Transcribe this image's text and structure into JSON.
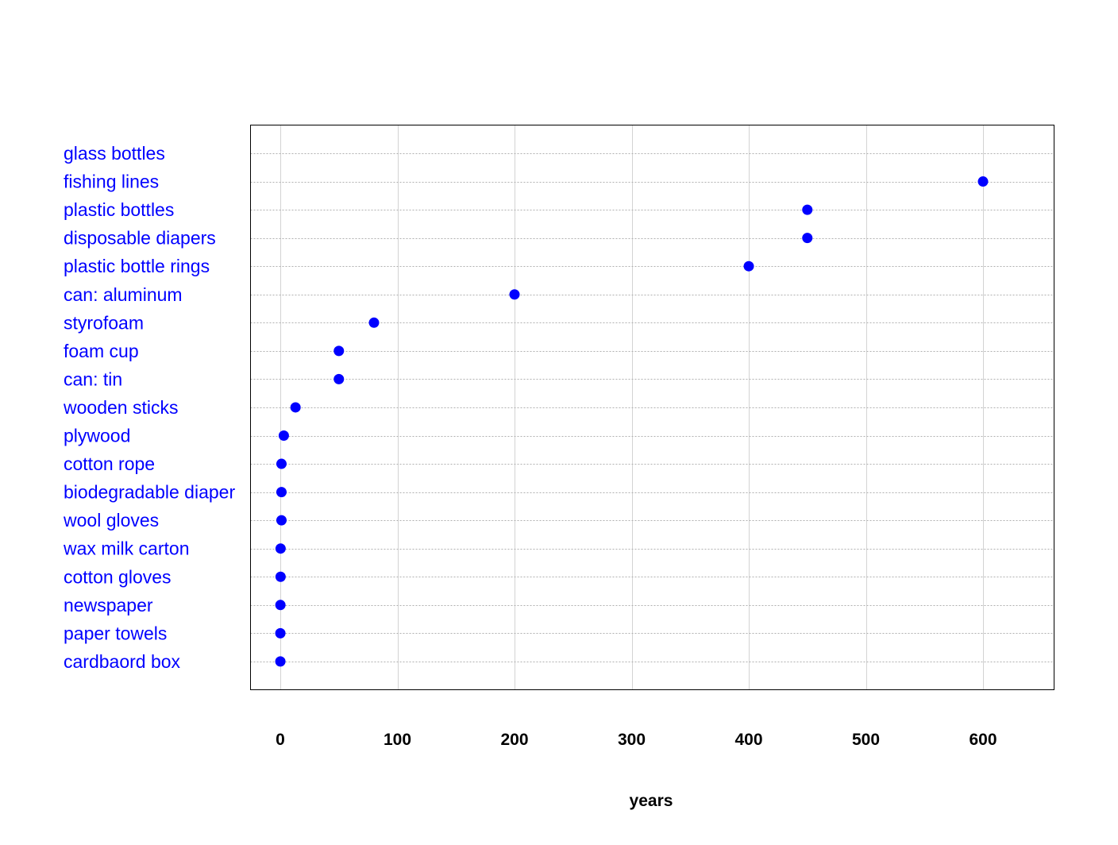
{
  "chart_data": {
    "type": "scatter",
    "title": "",
    "xlabel": "years",
    "ylabel": "",
    "xlim": [
      -25,
      660
    ],
    "xticks": [
      0,
      100,
      200,
      300,
      400,
      500,
      600
    ],
    "xtick_labels": [
      "0",
      "100",
      "200",
      "300",
      "400",
      "500",
      "600"
    ],
    "x_grid": true,
    "y_grid": "dotted",
    "categories": [
      "glass bottles",
      "fishing lines",
      "plastic bottles",
      "disposable diapers",
      "plastic bottle rings",
      "can: aluminum",
      "styrofoam",
      "foam cup",
      "can: tin",
      "wooden sticks",
      "plywood",
      "cotton rope",
      "biodegradable diaper",
      "wool gloves",
      "wax milk carton",
      "cotton gloves",
      "newspaper",
      "paper towels",
      "cardbaord box"
    ],
    "values": [
      null,
      600,
      450,
      450,
      400,
      200,
      80,
      50,
      50,
      13,
      3,
      1,
      1,
      1,
      0.25,
      0.25,
      0.1,
      0.05,
      0.05
    ],
    "label_color": "#0000ff",
    "point_color": "#0000ff"
  }
}
